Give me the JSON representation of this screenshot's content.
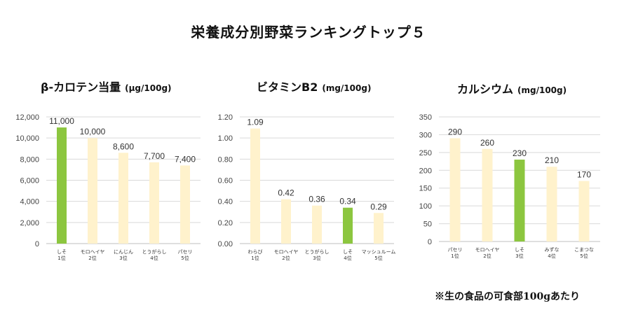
{
  "title": "栄養成分別野菜ランキングトップ５",
  "note": "※生の食品の可食部100gあたり",
  "colors": {
    "highlight": "#8cc63f",
    "normal": "#fff2cc",
    "grid": "#d9d9d9",
    "axis": "#bfbfbf"
  },
  "chart_data": [
    {
      "type": "bar",
      "title": "β-カロテン当量",
      "unit": "(μg/100g)",
      "categories": [
        [
          "しそ",
          "1位"
        ],
        [
          "モロヘイヤ",
          "2位"
        ],
        [
          "にんじん",
          "3位"
        ],
        [
          "とうがらし",
          "4位"
        ],
        [
          "パセリ",
          "5位"
        ]
      ],
      "values": [
        11000,
        10000,
        8600,
        7700,
        7400
      ],
      "value_labels": [
        "11,000",
        "10,000",
        "8,600",
        "7,700",
        "7,400"
      ],
      "highlight_index": 0,
      "ylim": [
        0,
        12000
      ],
      "yticks": [
        0,
        2000,
        4000,
        6000,
        8000,
        10000,
        12000
      ],
      "ytick_labels": [
        "0",
        "2,000",
        "4,000",
        "6,000",
        "8,000",
        "10,000",
        "12,000"
      ],
      "grid": true,
      "legend": "none"
    },
    {
      "type": "bar",
      "title": "ビタミンB2",
      "unit": "(mg/100g)",
      "categories": [
        [
          "わらび",
          "1位"
        ],
        [
          "モロヘイヤ",
          "2位"
        ],
        [
          "とうがらし",
          "3位"
        ],
        [
          "しそ",
          "4位"
        ],
        [
          "マッシュルーム",
          "5位"
        ]
      ],
      "values": [
        1.09,
        0.42,
        0.36,
        0.34,
        0.29
      ],
      "value_labels": [
        "1.09",
        "0.42",
        "0.36",
        "0.34",
        "0.29"
      ],
      "highlight_index": 3,
      "ylim": [
        0,
        1.2
      ],
      "yticks": [
        0,
        0.2,
        0.4,
        0.6,
        0.8,
        1.0,
        1.2
      ],
      "ytick_labels": [
        "0.00",
        "0.20",
        "0.40",
        "0.60",
        "0.80",
        "1.00",
        "1.20"
      ],
      "grid": true,
      "legend": "none"
    },
    {
      "type": "bar",
      "title": "カルシウム",
      "unit": "(mg/100g)",
      "categories": [
        [
          "パセリ",
          "1位"
        ],
        [
          "モロヘイヤ",
          "2位"
        ],
        [
          "しそ",
          "3位"
        ],
        [
          "みずな",
          "4位"
        ],
        [
          "こまつな",
          "5位"
        ]
      ],
      "values": [
        290,
        260,
        230,
        210,
        170
      ],
      "value_labels": [
        "290",
        "260",
        "230",
        "210",
        "170"
      ],
      "highlight_index": 2,
      "ylim": [
        0,
        350
      ],
      "yticks": [
        0,
        50,
        100,
        150,
        200,
        250,
        300,
        350
      ],
      "ytick_labels": [
        "0",
        "50",
        "100",
        "150",
        "200",
        "250",
        "300",
        "350"
      ],
      "grid": true,
      "legend": "none"
    }
  ]
}
